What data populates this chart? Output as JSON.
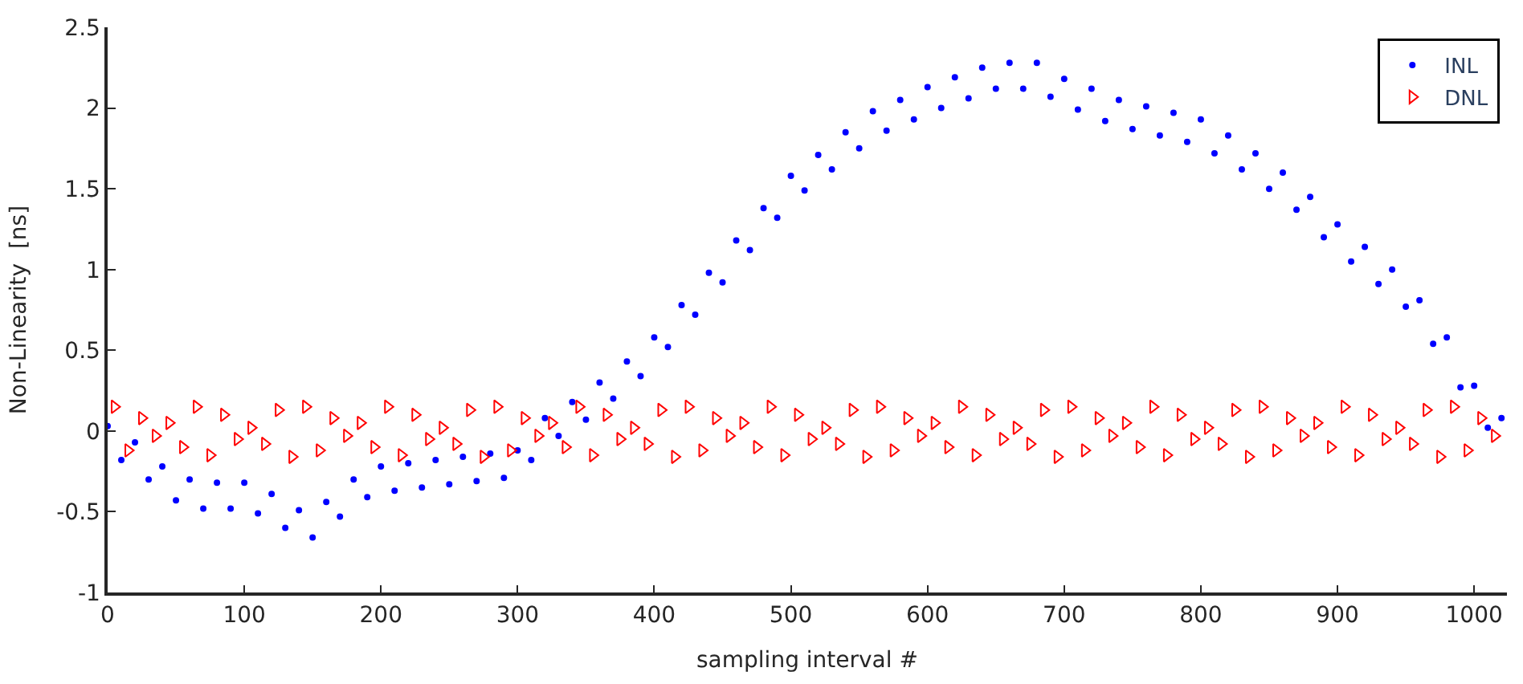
{
  "chart_data": {
    "type": "scatter",
    "xlabel": "sampling interval #",
    "ylabel": "Non-Linearity  [ns]",
    "xlim": [
      0,
      1024
    ],
    "ylim": [
      -1,
      2.5
    ],
    "xticks": [
      0,
      100,
      200,
      300,
      400,
      500,
      600,
      700,
      800,
      900,
      1000
    ],
    "yticks": [
      -1,
      -0.5,
      0,
      0.5,
      1,
      1.5,
      2,
      2.5
    ],
    "legend": "top right",
    "series": [
      {
        "name": "INL",
        "color": "#0000ff",
        "marker": "circle",
        "x": [
          0,
          10,
          20,
          30,
          40,
          50,
          60,
          70,
          80,
          90,
          100,
          110,
          120,
          130,
          140,
          150,
          160,
          170,
          180,
          190,
          200,
          210,
          220,
          230,
          240,
          250,
          260,
          270,
          280,
          290,
          300,
          310,
          320,
          330,
          340,
          350,
          360,
          370,
          380,
          390,
          400,
          410,
          420,
          430,
          440,
          450,
          460,
          470,
          480,
          490,
          500,
          510,
          520,
          530,
          540,
          550,
          560,
          570,
          580,
          590,
          600,
          610,
          620,
          630,
          640,
          650,
          660,
          670,
          680,
          690,
          700,
          710,
          720,
          730,
          740,
          750,
          760,
          770,
          780,
          790,
          800,
          810,
          820,
          830,
          840,
          850,
          860,
          870,
          880,
          890,
          900,
          910,
          920,
          930,
          940,
          950,
          960,
          970,
          980,
          990,
          1000,
          1010,
          1020
        ],
        "values": [
          0.03,
          -0.18,
          -0.07,
          -0.3,
          -0.22,
          -0.43,
          -0.3,
          -0.48,
          -0.32,
          -0.48,
          -0.32,
          -0.51,
          -0.39,
          -0.6,
          -0.49,
          -0.66,
          -0.44,
          -0.53,
          -0.3,
          -0.41,
          -0.22,
          -0.37,
          -0.2,
          -0.35,
          -0.18,
          -0.33,
          -0.16,
          -0.31,
          -0.14,
          -0.29,
          -0.12,
          -0.18,
          0.08,
          -0.03,
          0.18,
          0.07,
          0.3,
          0.2,
          0.43,
          0.34,
          0.58,
          0.52,
          0.78,
          0.72,
          0.98,
          0.92,
          1.18,
          1.12,
          1.38,
          1.32,
          1.58,
          1.49,
          1.71,
          1.62,
          1.85,
          1.75,
          1.98,
          1.86,
          2.05,
          1.93,
          2.13,
          2.0,
          2.19,
          2.06,
          2.25,
          2.12,
          2.28,
          2.12,
          2.28,
          2.07,
          2.18,
          1.99,
          2.12,
          1.92,
          2.05,
          1.87,
          2.01,
          1.83,
          1.97,
          1.79,
          1.93,
          1.72,
          1.83,
          1.62,
          1.72,
          1.5,
          1.6,
          1.37,
          1.45,
          1.2,
          1.28,
          1.05,
          1.14,
          0.91,
          1.0,
          0.77,
          0.81,
          0.54,
          0.58,
          0.27,
          0.28,
          0.02,
          0.08
        ]
      },
      {
        "name": "DNL",
        "color": "#ff0000",
        "marker": "triangle",
        "x": [
          5,
          15,
          25,
          35,
          45,
          55,
          65,
          75,
          85,
          95,
          105,
          115,
          125,
          135,
          145,
          155,
          165,
          175,
          185,
          195,
          205,
          215,
          225,
          235,
          245,
          255,
          265,
          275,
          285,
          295,
          305,
          315,
          325,
          335,
          345,
          355,
          365,
          375,
          385,
          395,
          405,
          415,
          425,
          435,
          445,
          455,
          465,
          475,
          485,
          495,
          505,
          515,
          525,
          535,
          545,
          555,
          565,
          575,
          585,
          595,
          605,
          615,
          625,
          635,
          645,
          655,
          665,
          675,
          685,
          695,
          705,
          715,
          725,
          735,
          745,
          755,
          765,
          775,
          785,
          795,
          805,
          815,
          825,
          835,
          845,
          855,
          865,
          875,
          885,
          895,
          905,
          915,
          925,
          935,
          945,
          955,
          965,
          975,
          985,
          995,
          1005,
          1015
        ],
        "values": [
          0.15,
          -0.12,
          0.08,
          -0.03,
          0.05,
          -0.1,
          0.15,
          -0.15,
          0.1,
          -0.05,
          0.02,
          -0.08,
          0.13,
          -0.16,
          0.15,
          -0.12,
          0.08,
          -0.03,
          0.05,
          -0.1,
          0.15,
          -0.15,
          0.1,
          -0.05,
          0.02,
          -0.08,
          0.13,
          -0.16,
          0.15,
          -0.12,
          0.08,
          -0.03,
          0.05,
          -0.1,
          0.15,
          -0.15,
          0.1,
          -0.05,
          0.02,
          -0.08,
          0.13,
          -0.16,
          0.15,
          -0.12,
          0.08,
          -0.03,
          0.05,
          -0.1,
          0.15,
          -0.15,
          0.1,
          -0.05,
          0.02,
          -0.08,
          0.13,
          -0.16,
          0.15,
          -0.12,
          0.08,
          -0.03,
          0.05,
          -0.1,
          0.15,
          -0.15,
          0.1,
          -0.05,
          0.02,
          -0.08,
          0.13,
          -0.16,
          0.15,
          -0.12,
          0.08,
          -0.03,
          0.05,
          -0.1,
          0.15,
          -0.15,
          0.1,
          -0.05,
          0.02,
          -0.08,
          0.13,
          -0.16,
          0.15,
          -0.12,
          0.08,
          -0.03,
          0.05,
          -0.1,
          0.15,
          -0.15,
          0.1,
          -0.05,
          0.02,
          -0.08,
          0.13,
          -0.16,
          0.15,
          -0.12,
          0.08,
          -0.03
        ]
      }
    ]
  }
}
